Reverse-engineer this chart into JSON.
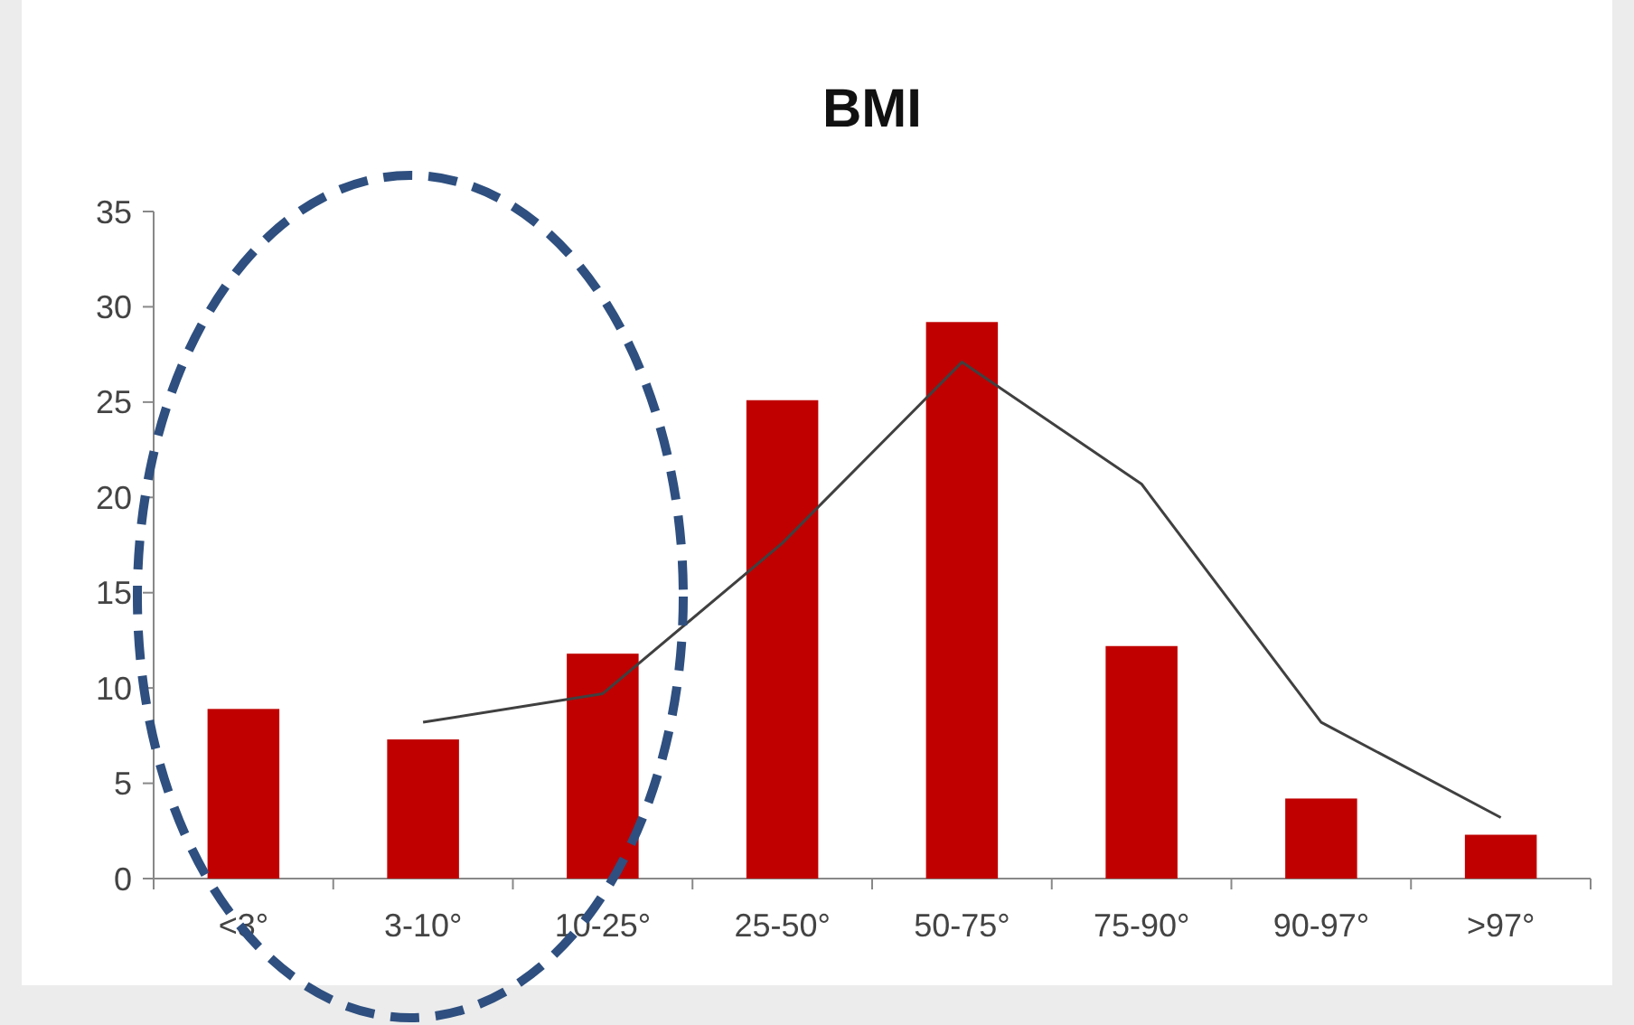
{
  "chart_data": {
    "type": "bar",
    "title": "BMI",
    "categories": [
      "<3°",
      "3-10°",
      "10-25°",
      "25-50°",
      "50-75°",
      "75-90°",
      "90-97°",
      ">97°"
    ],
    "series": [
      {
        "color": "#c00000",
        "values": [
          8.9,
          7.3,
          11.8,
          25.1,
          29.2,
          12.2,
          4.2,
          2.3
        ]
      },
      {
        "type": "line",
        "color": "#404040",
        "values": [
          null,
          8.2,
          9.7,
          17.6,
          27.1,
          20.7,
          8.2,
          3.2
        ]
      }
    ],
    "ylim": [
      0,
      35
    ],
    "yticks": [
      0,
      5,
      10,
      15,
      20,
      25,
      30,
      35
    ],
    "grid": false,
    "marker": "none",
    "line_style": "solid"
  }
}
